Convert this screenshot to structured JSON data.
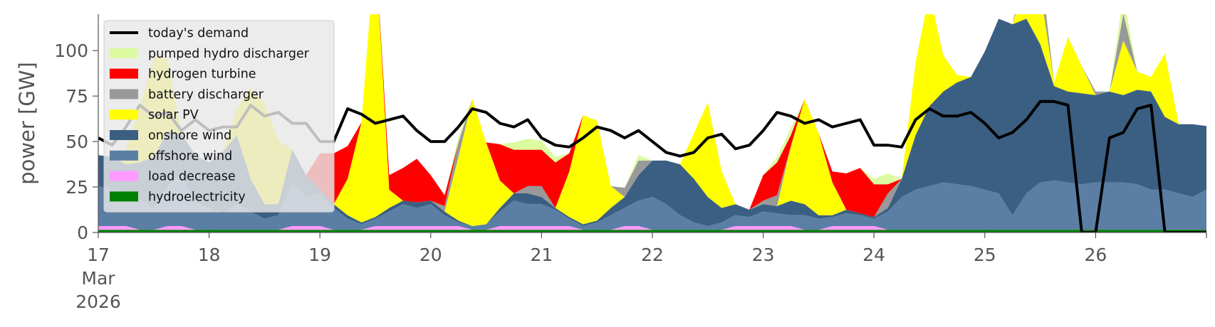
{
  "chart_data": {
    "type": "area",
    "ylabel": "power [GW]",
    "ylim": [
      0,
      120
    ],
    "xlim": [
      "2026-03-17T00:00",
      "2026-03-27T00:00"
    ],
    "y_ticks": [
      0,
      25,
      50,
      75,
      100
    ],
    "x_ticks": [
      {
        "at": "2026-03-17T00:00",
        "lines": [
          "17",
          "Mar",
          "2026"
        ]
      },
      {
        "at": "2026-03-18T00:00",
        "lines": [
          "18"
        ]
      },
      {
        "at": "2026-03-19T00:00",
        "lines": [
          "19"
        ]
      },
      {
        "at": "2026-03-20T00:00",
        "lines": [
          "20"
        ]
      },
      {
        "at": "2026-03-21T00:00",
        "lines": [
          "21"
        ]
      },
      {
        "at": "2026-03-22T00:00",
        "lines": [
          "22"
        ]
      },
      {
        "at": "2026-03-23T00:00",
        "lines": [
          "23"
        ]
      },
      {
        "at": "2026-03-24T00:00",
        "lines": [
          "24"
        ]
      },
      {
        "at": "2026-03-25T00:00",
        "lines": [
          "25"
        ]
      },
      {
        "at": "2026-03-26T00:00",
        "lines": [
          "26"
        ]
      }
    ],
    "grid": false,
    "legend_position": "top-left",
    "background": "#ffffff",
    "x": [
      "2026-03-17T00:00",
      "2026-03-17T03:00",
      "2026-03-17T06:00",
      "2026-03-17T09:00",
      "2026-03-17T12:00",
      "2026-03-17T15:00",
      "2026-03-17T18:00",
      "2026-03-17T21:00",
      "2026-03-18T00:00",
      "2026-03-18T03:00",
      "2026-03-18T06:00",
      "2026-03-18T09:00",
      "2026-03-18T12:00",
      "2026-03-18T15:00",
      "2026-03-18T18:00",
      "2026-03-18T21:00",
      "2026-03-19T00:00",
      "2026-03-19T03:00",
      "2026-03-19T06:00",
      "2026-03-19T09:00",
      "2026-03-19T12:00",
      "2026-03-19T15:00",
      "2026-03-19T18:00",
      "2026-03-19T21:00",
      "2026-03-20T00:00",
      "2026-03-20T03:00",
      "2026-03-20T06:00",
      "2026-03-20T09:00",
      "2026-03-20T12:00",
      "2026-03-20T15:00",
      "2026-03-20T18:00",
      "2026-03-20T21:00",
      "2026-03-21T00:00",
      "2026-03-21T03:00",
      "2026-03-21T06:00",
      "2026-03-21T09:00",
      "2026-03-21T12:00",
      "2026-03-21T15:00",
      "2026-03-21T18:00",
      "2026-03-21T21:00",
      "2026-03-22T00:00",
      "2026-03-22T03:00",
      "2026-03-22T06:00",
      "2026-03-22T09:00",
      "2026-03-22T12:00",
      "2026-03-22T15:00",
      "2026-03-22T18:00",
      "2026-03-22T21:00",
      "2026-03-23T00:00",
      "2026-03-23T03:00",
      "2026-03-23T06:00",
      "2026-03-23T09:00",
      "2026-03-23T12:00",
      "2026-03-23T15:00",
      "2026-03-23T18:00",
      "2026-03-23T21:00",
      "2026-03-24T00:00",
      "2026-03-24T03:00",
      "2026-03-24T06:00",
      "2026-03-24T09:00",
      "2026-03-24T12:00",
      "2026-03-24T15:00",
      "2026-03-24T18:00",
      "2026-03-24T21:00",
      "2026-03-25T00:00",
      "2026-03-25T03:00",
      "2026-03-25T06:00",
      "2026-03-25T09:00",
      "2026-03-25T12:00",
      "2026-03-25T15:00",
      "2026-03-25T18:00",
      "2026-03-25T21:00",
      "2026-03-26T00:00",
      "2026-03-26T03:00",
      "2026-03-26T06:00",
      "2026-03-26T09:00",
      "2026-03-26T12:00",
      "2026-03-26T15:00",
      "2026-03-26T18:00",
      "2026-03-26T21:00",
      "2026-03-27T00:00"
    ],
    "stack_series": [
      {
        "name": "hydroelectricity",
        "color": "#008000",
        "values": [
          1.5,
          1.5,
          1.5,
          1.5,
          1.5,
          1.5,
          1.5,
          1.5,
          1.5,
          1.5,
          1.5,
          1.5,
          1.5,
          1.5,
          1.5,
          1.5,
          1.5,
          1.5,
          1.5,
          1.5,
          1.5,
          1.5,
          1.5,
          1.5,
          1.5,
          1.5,
          1.5,
          1.5,
          1.5,
          1.5,
          1.5,
          1.5,
          1.5,
          1.5,
          1.5,
          1.5,
          1.5,
          1.5,
          1.5,
          1.5,
          1.5,
          1.5,
          1.5,
          1.5,
          1.5,
          1.5,
          1.5,
          1.5,
          1.5,
          1.5,
          1.5,
          1.5,
          1.5,
          1.5,
          1.5,
          1.5,
          1.5,
          1.5,
          1.5,
          1.5,
          1.5,
          1.5,
          1.5,
          1.5,
          1.5,
          1.5,
          1.5,
          1.5,
          1.5,
          1.5,
          1.5,
          1.5,
          1.5,
          1.5,
          1.5,
          1.5,
          1.5,
          1.5,
          1.5,
          1.5,
          1.5
        ]
      },
      {
        "name": "load decrease",
        "color": "#ff99ff",
        "values": [
          2,
          2,
          2,
          0,
          0,
          2,
          2,
          0,
          0,
          0,
          0,
          0,
          0,
          0,
          2,
          2,
          2,
          0,
          0,
          0,
          2,
          2,
          2,
          2,
          2,
          2,
          2,
          0,
          0,
          2,
          2,
          2,
          2,
          2,
          2,
          0,
          0,
          0,
          2,
          2,
          0,
          0,
          0,
          0,
          0,
          0,
          2,
          2,
          2,
          2,
          2,
          0,
          0,
          2,
          2,
          2,
          2,
          0,
          0,
          0,
          0,
          0,
          0,
          0,
          0,
          0,
          0,
          0,
          0,
          0,
          0,
          0,
          0,
          0,
          0,
          0,
          0,
          0,
          0,
          0,
          0
        ]
      },
      {
        "name": "offshore wind",
        "color": "#5b7fa4",
        "values": [
          22,
          20,
          18,
          17,
          12,
          22,
          28,
          15,
          12,
          9,
          14,
          10,
          6,
          8,
          24,
          16,
          18,
          12,
          6,
          3,
          4,
          8,
          12,
          10,
          12,
          6,
          2,
          2,
          3,
          8,
          14,
          12,
          12,
          9,
          4,
          2,
          4,
          8,
          10,
          14,
          18,
          14,
          8,
          4,
          2,
          4,
          6,
          5,
          8,
          7,
          6,
          8,
          6,
          5,
          7,
          6,
          4,
          10,
          18,
          22,
          24,
          26,
          25,
          24,
          22,
          20,
          8,
          20,
          26,
          27,
          26,
          25,
          26,
          26,
          26,
          25,
          22,
          22,
          20,
          18,
          22
        ]
      },
      {
        "name": "onshore wind",
        "color": "#3b5f82",
        "values": [
          17,
          18,
          16,
          20,
          28,
          30,
          23,
          26,
          25,
          34,
          38,
          18,
          8,
          6,
          18,
          12,
          2,
          2,
          2,
          1,
          1,
          2,
          2,
          3,
          2,
          2,
          1,
          0,
          0,
          2,
          4,
          6,
          4,
          1,
          1,
          1,
          1,
          4,
          6,
          14,
          20,
          24,
          28,
          24,
          16,
          8,
          6,
          4,
          4,
          4,
          8,
          6,
          2,
          1,
          2,
          1,
          1,
          2,
          10,
          30,
          44,
          50,
          56,
          60,
          76,
          96,
          105,
          96,
          76,
          52,
          50,
          50,
          48,
          50,
          48,
          52,
          54,
          40,
          38,
          40,
          35
        ]
      },
      {
        "name": "solar PV",
        "color": "#ffff00",
        "values": [
          0,
          0,
          8,
          30,
          55,
          40,
          0,
          0,
          0,
          0,
          15,
          50,
          56,
          35,
          0,
          0,
          0,
          0,
          20,
          55,
          150,
          10,
          0,
          0,
          0,
          0,
          35,
          70,
          45,
          15,
          0,
          0,
          0,
          0,
          25,
          60,
          55,
          12,
          0,
          0,
          0,
          0,
          0,
          25,
          52,
          20,
          0,
          0,
          0,
          0,
          30,
          58,
          45,
          18,
          0,
          0,
          0,
          0,
          0,
          40,
          62,
          20,
          4,
          0,
          0,
          0,
          0,
          24,
          30,
          2,
          30,
          15,
          0,
          0,
          30,
          10,
          8,
          35,
          0,
          0,
          0
        ]
      },
      {
        "name": "battery discharger",
        "color": "#999999",
        "values": [
          0,
          0,
          0,
          0,
          0,
          0,
          0,
          0,
          0,
          0,
          0,
          0,
          0,
          0,
          0,
          0,
          0,
          0,
          0,
          0,
          0,
          0,
          0,
          0,
          0,
          3,
          8,
          0,
          0,
          0,
          0,
          4,
          6,
          0,
          0,
          0,
          0,
          0,
          5,
          8,
          0,
          0,
          0,
          0,
          0,
          0,
          0,
          0,
          2,
          6,
          0,
          0,
          0,
          0,
          0,
          0,
          0,
          8,
          0,
          0,
          0,
          0,
          0,
          0,
          0,
          0,
          0,
          12,
          14,
          0,
          0,
          0,
          2,
          0,
          15,
          0,
          0,
          0,
          0,
          0,
          0
        ]
      },
      {
        "name": "hydrogen turbine",
        "color": "#ff0000",
        "values": [
          0,
          0,
          0,
          0,
          0,
          0,
          0,
          0,
          0,
          0,
          0,
          0,
          0,
          0,
          0,
          0,
          20,
          28,
          18,
          0,
          0,
          8,
          18,
          24,
          14,
          6,
          0,
          0,
          0,
          20,
          24,
          20,
          20,
          25,
          10,
          0,
          0,
          0,
          0,
          0,
          0,
          0,
          0,
          0,
          0,
          0,
          0,
          0,
          14,
          18,
          6,
          0,
          0,
          6,
          20,
          25,
          18,
          5,
          0,
          0,
          0,
          0,
          0,
          0,
          0,
          0,
          0,
          0,
          0,
          0,
          0,
          0,
          0,
          0,
          0,
          0,
          0,
          0,
          0,
          0,
          0
        ]
      },
      {
        "name": "pumped hydro discharger",
        "color": "#dcfaa0",
        "values": [
          0,
          0,
          0,
          0,
          0,
          0,
          0,
          0,
          0,
          0,
          0,
          0,
          0,
          0,
          0,
          0,
          0,
          0,
          0,
          0,
          0,
          0,
          0,
          0,
          0,
          0,
          3,
          0,
          0,
          0,
          4,
          6,
          5,
          3,
          0,
          0,
          0,
          0,
          0,
          3,
          0,
          0,
          0,
          0,
          0,
          0,
          0,
          0,
          0,
          3,
          4,
          0,
          0,
          0,
          0,
          0,
          3,
          6,
          0,
          0,
          0,
          0,
          0,
          0,
          0,
          0,
          0,
          0,
          4,
          0,
          0,
          0,
          0,
          0,
          10,
          0,
          0,
          0,
          0,
          0,
          0
        ]
      }
    ],
    "demand_series": {
      "name": "today's demand",
      "color": "#000000",
      "values": [
        52,
        48,
        58,
        70,
        64,
        66,
        56,
        62,
        56,
        58,
        58,
        70,
        64,
        66,
        60,
        60,
        50,
        50,
        68,
        65,
        60,
        62,
        64,
        56,
        50,
        50,
        58,
        68,
        66,
        60,
        58,
        62,
        52,
        48,
        47,
        52,
        58,
        56,
        52,
        56,
        50,
        44,
        42,
        44,
        52,
        54,
        46,
        48,
        56,
        66,
        64,
        60,
        62,
        58,
        60,
        62,
        48,
        48,
        47,
        62,
        68,
        64,
        64,
        66,
        60,
        52,
        55,
        62,
        72,
        72,
        70,
        0,
        0,
        52,
        55,
        68,
        70,
        0,
        0,
        0,
        0
      ]
    },
    "legend_items": [
      {
        "label": "today's demand",
        "kind": "line",
        "color": "#000000"
      },
      {
        "label": "pumped hydro discharger",
        "kind": "patch",
        "color": "#dcfaa0"
      },
      {
        "label": "hydrogen turbine",
        "kind": "patch",
        "color": "#ff0000"
      },
      {
        "label": "battery discharger",
        "kind": "patch",
        "color": "#999999"
      },
      {
        "label": "solar PV",
        "kind": "patch",
        "color": "#ffff00"
      },
      {
        "label": "onshore wind",
        "kind": "patch",
        "color": "#3b5f82"
      },
      {
        "label": "offshore wind",
        "kind": "patch",
        "color": "#5b7fa4"
      },
      {
        "label": "load decrease",
        "kind": "patch",
        "color": "#ff99ff"
      },
      {
        "label": "hydroelectricity",
        "kind": "patch",
        "color": "#008000"
      }
    ],
    "legend_background": "#e8e8e8"
  }
}
